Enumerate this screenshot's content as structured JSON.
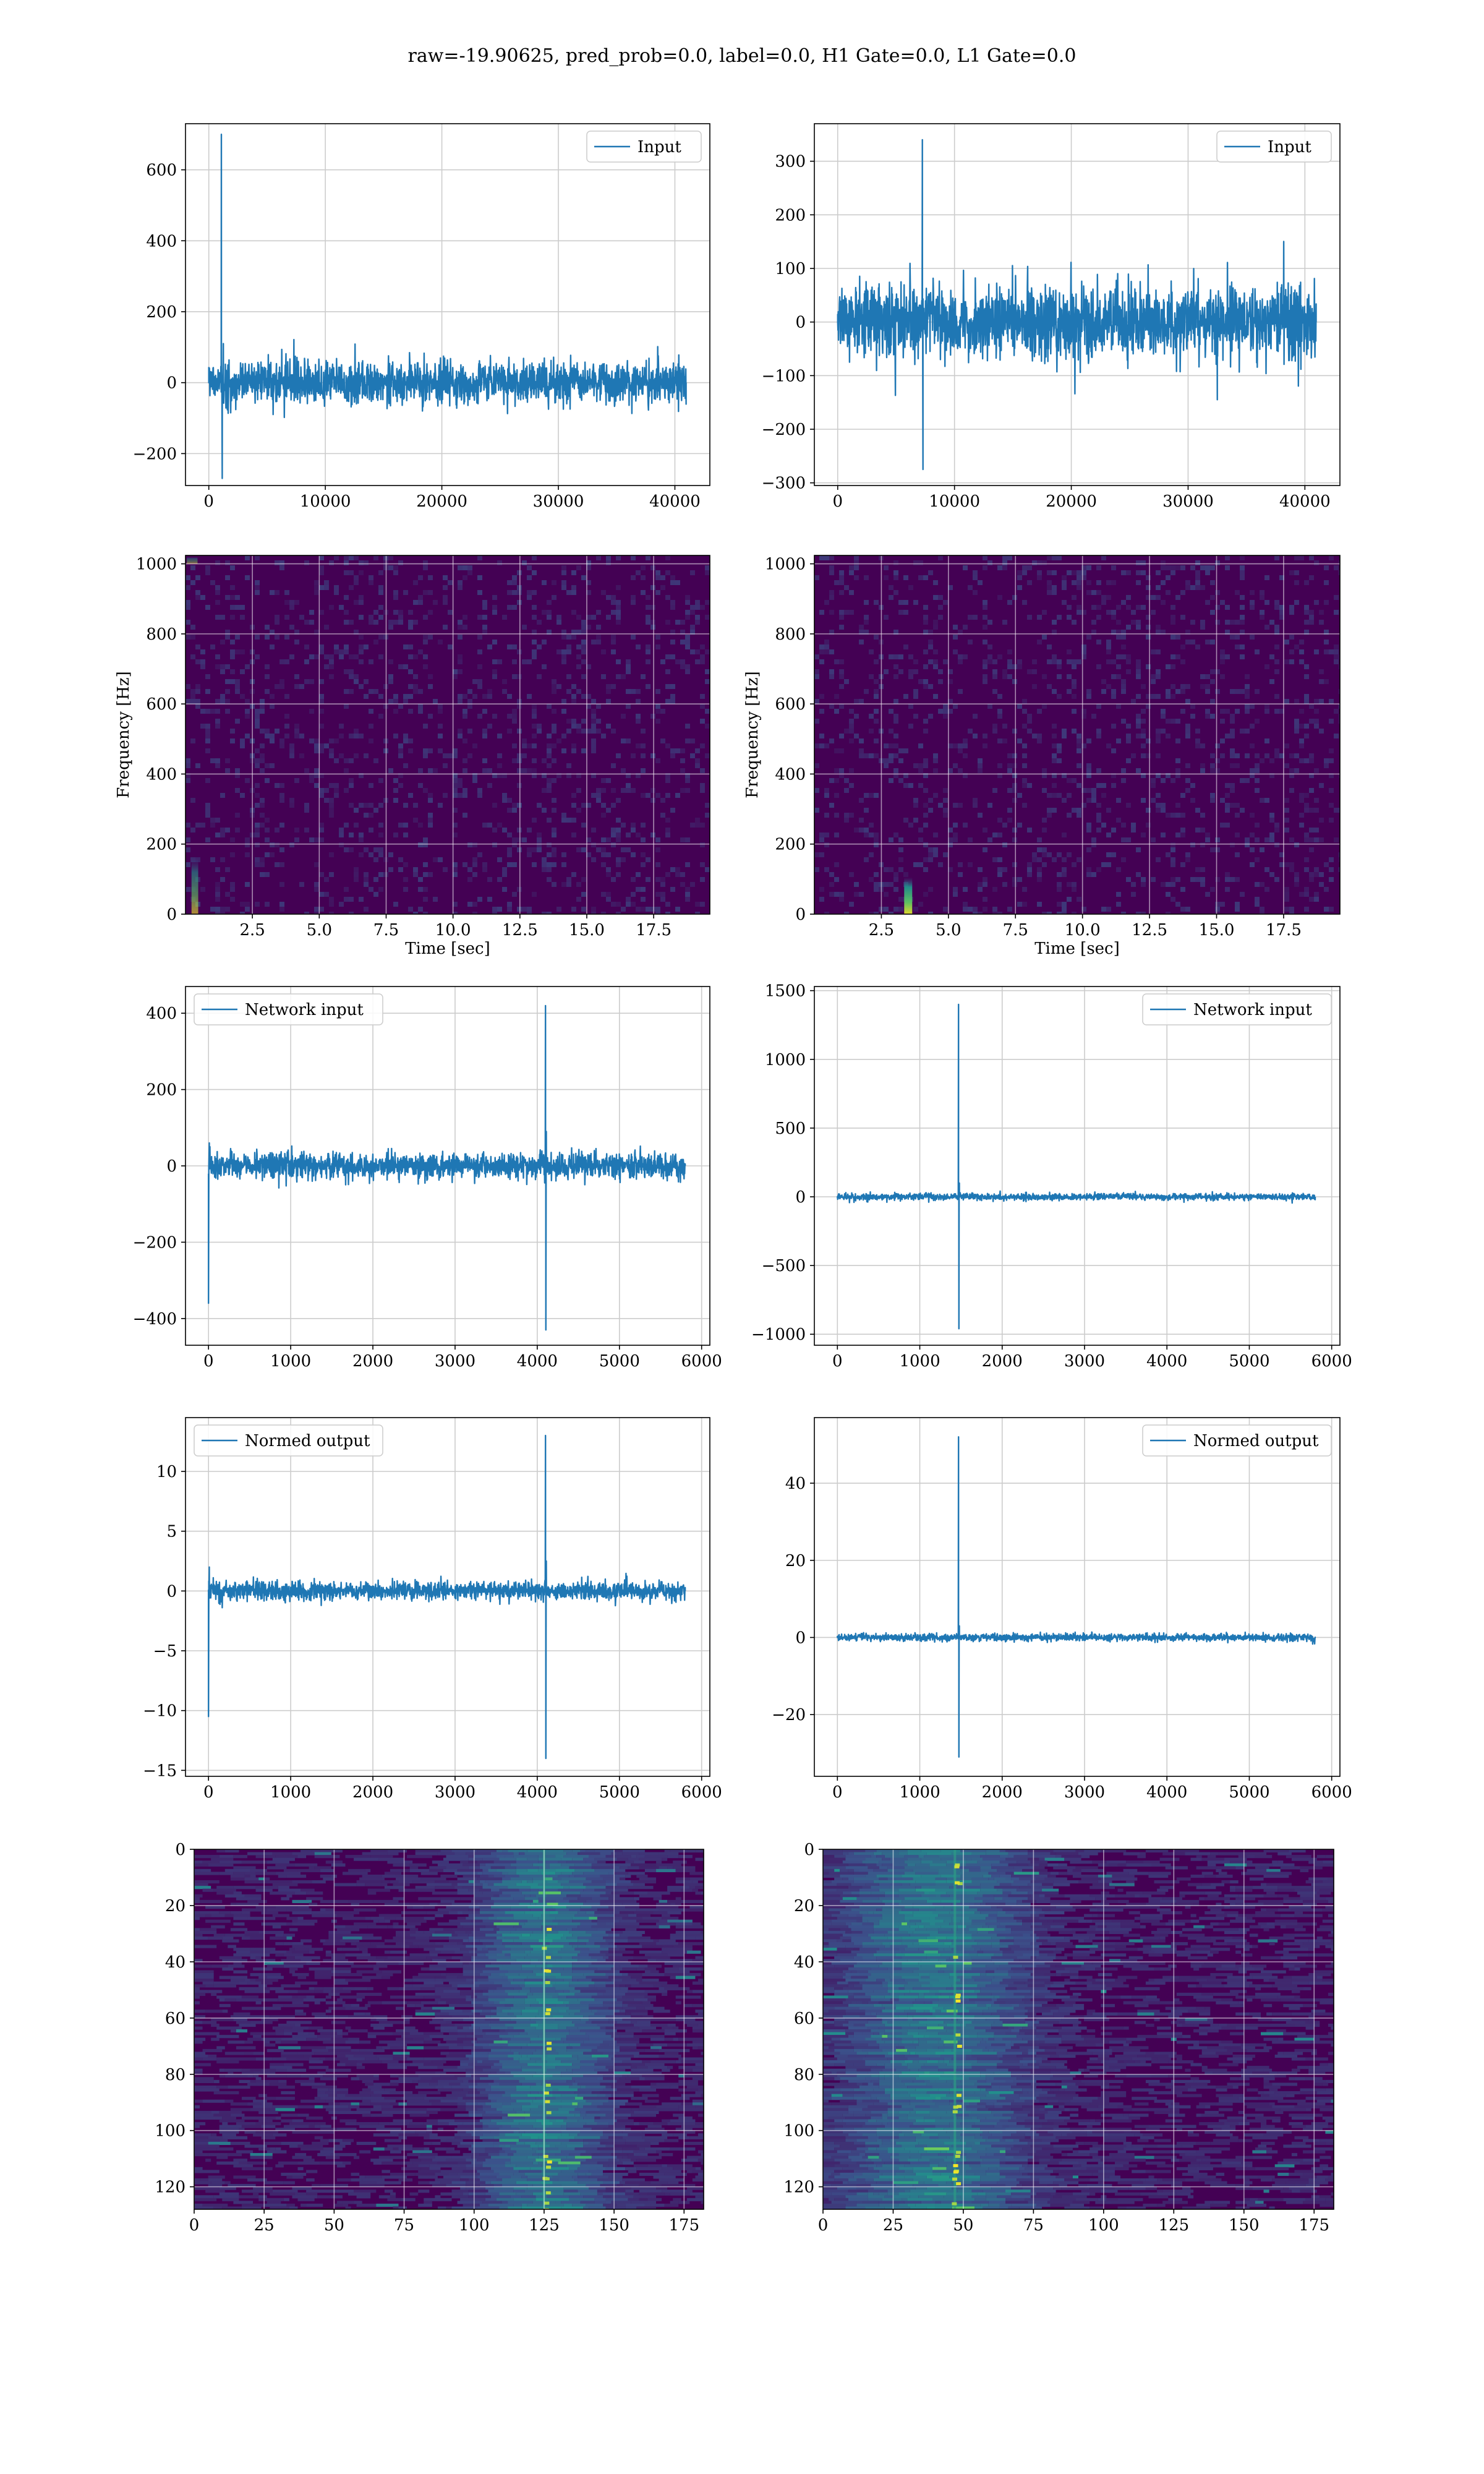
{
  "figure": {
    "title": "raw=-19.90625, pred_prob=0.0, label=0.0, H1 Gate=0.0, L1 Gate=0.0"
  },
  "colors": {
    "line": "#1f77b4",
    "grid": "#cccccc",
    "viridis_low": "#440154",
    "viridis_mid": "#21918c",
    "viridis_high": "#fde725"
  },
  "chart_data": [
    {
      "id": "input-left",
      "type": "line",
      "series": [
        {
          "name": "Input",
          "noise_amplitude": 80,
          "x": [
            0,
            1000,
            1080,
            1150,
            1250,
            10000,
            20000,
            30000,
            40960
          ],
          "y": [
            0,
            20,
            700,
            -270,
            110,
            25,
            0,
            10,
            0
          ]
        }
      ],
      "xlim": [
        -2000,
        43000
      ],
      "ylim": [
        -290,
        730
      ],
      "xticks": [
        0,
        10000,
        20000,
        30000,
        40000
      ],
      "xtick_labels": [
        "0",
        "10000",
        "20000",
        "30000",
        "40000"
      ],
      "yticks": [
        -200,
        0,
        200,
        400,
        600
      ],
      "ytick_labels": [
        "−200",
        "0",
        "200",
        "400",
        "600"
      ],
      "legend": "top-right",
      "grid": true
    },
    {
      "id": "input-right",
      "type": "line",
      "series": [
        {
          "name": "Input",
          "noise_amplitude": 90,
          "x": [
            0,
            7200,
            7250,
            7300,
            10000,
            20000,
            30000,
            32500,
            40960
          ],
          "y": [
            0,
            40,
            340,
            -275,
            30,
            0,
            10,
            -145,
            0
          ]
        }
      ],
      "xlim": [
        -2000,
        43000
      ],
      "ylim": [
        -305,
        370
      ],
      "xticks": [
        0,
        10000,
        20000,
        30000,
        40000
      ],
      "xtick_labels": [
        "0",
        "10000",
        "20000",
        "30000",
        "40000"
      ],
      "yticks": [
        -300,
        -200,
        -100,
        0,
        100,
        200,
        300
      ],
      "ytick_labels": [
        "−300",
        "−200",
        "−100",
        "0",
        "100",
        "200",
        "300"
      ],
      "legend": "top-right",
      "grid": true
    },
    {
      "id": "spectrogram-left",
      "type": "heatmap",
      "xlabel": "Time [sec]",
      "ylabel": "Frequency [Hz]",
      "xlim": [
        0,
        19.6
      ],
      "ylim": [
        0,
        1024
      ],
      "xticks": [
        2.5,
        5.0,
        7.5,
        10.0,
        12.5,
        15.0,
        17.5
      ],
      "xtick_labels": [
        "2.5",
        "5.0",
        "7.5",
        "10.0",
        "12.5",
        "15.0",
        "17.5"
      ],
      "yticks": [
        0,
        200,
        400,
        600,
        800,
        1000
      ],
      "ytick_labels": [
        "0",
        "200",
        "400",
        "600",
        "800",
        "1000"
      ],
      "hotspots": [
        {
          "t": 0.35,
          "f": 80,
          "dt": 0.25,
          "df": 160,
          "level": 0.6
        },
        {
          "t": 0.25,
          "f": 1010,
          "dt": 0.4,
          "df": 20,
          "level": 0.45
        }
      ],
      "grid": true
    },
    {
      "id": "spectrogram-right",
      "type": "heatmap",
      "xlabel": "Time [sec]",
      "ylabel": "Frequency [Hz]",
      "xlim": [
        0,
        19.6
      ],
      "ylim": [
        0,
        1024
      ],
      "xticks": [
        2.5,
        5.0,
        7.5,
        10.0,
        12.5,
        15.0,
        17.5
      ],
      "xtick_labels": [
        "2.5",
        "5.0",
        "7.5",
        "10.0",
        "12.5",
        "15.0",
        "17.5"
      ],
      "yticks": [
        0,
        200,
        400,
        600,
        800,
        1000
      ],
      "ytick_labels": [
        "0",
        "200",
        "400",
        "600",
        "800",
        "1000"
      ],
      "hotspots": [
        {
          "t": 3.5,
          "f": 50,
          "dt": 0.3,
          "df": 110,
          "level": 0.95
        }
      ],
      "grid": true
    },
    {
      "id": "network-input-left",
      "type": "line",
      "series": [
        {
          "name": "Network input",
          "noise_amplitude": 45,
          "x": [
            0,
            10,
            20,
            1000,
            4100,
            4105,
            4110,
            4115,
            5800
          ],
          "y": [
            -360,
            60,
            0,
            10,
            420,
            -430,
            90,
            0,
            0
          ]
        }
      ],
      "xlim": [
        -280,
        6100
      ],
      "ylim": [
        -470,
        470
      ],
      "xticks": [
        0,
        1000,
        2000,
        3000,
        4000,
        5000,
        6000
      ],
      "xtick_labels": [
        "0",
        "1000",
        "2000",
        "3000",
        "4000",
        "5000",
        "6000"
      ],
      "yticks": [
        -400,
        -200,
        0,
        200,
        400
      ],
      "ytick_labels": [
        "−400",
        "−200",
        "0",
        "200",
        "400"
      ],
      "legend": "top-left",
      "grid": true
    },
    {
      "id": "network-input-right",
      "type": "line",
      "series": [
        {
          "name": "Network input",
          "noise_amplitude": 30,
          "x": [
            0,
            1000,
            1470,
            1475,
            1480,
            1485,
            3000,
            5000,
            5800
          ],
          "y": [
            0,
            0,
            1400,
            -960,
            100,
            0,
            0,
            10,
            0
          ]
        }
      ],
      "xlim": [
        -280,
        6100
      ],
      "ylim": [
        -1080,
        1530
      ],
      "xticks": [
        0,
        1000,
        2000,
        3000,
        4000,
        5000,
        6000
      ],
      "xtick_labels": [
        "0",
        "1000",
        "2000",
        "3000",
        "4000",
        "5000",
        "6000"
      ],
      "yticks": [
        -1000,
        -500,
        0,
        500,
        1000,
        1500
      ],
      "ytick_labels": [
        "−1000",
        "−500",
        "0",
        "500",
        "1000",
        "1500"
      ],
      "legend": "top-right",
      "grid": true
    },
    {
      "id": "normed-output-left",
      "type": "line",
      "series": [
        {
          "name": "Normed output",
          "noise_amplitude": 1.0,
          "x": [
            0,
            10,
            20,
            1000,
            4100,
            4105,
            4110,
            4115,
            5800
          ],
          "y": [
            -10.5,
            2,
            0,
            0.3,
            13,
            -14,
            2.5,
            0,
            0
          ]
        }
      ],
      "xlim": [
        -280,
        6100
      ],
      "ylim": [
        -15.5,
        14.5
      ],
      "xticks": [
        0,
        1000,
        2000,
        3000,
        4000,
        5000,
        6000
      ],
      "xtick_labels": [
        "0",
        "1000",
        "2000",
        "3000",
        "4000",
        "5000",
        "6000"
      ],
      "yticks": [
        -15,
        -10,
        -5,
        0,
        5,
        10
      ],
      "ytick_labels": [
        "−15",
        "−10",
        "−5",
        "0",
        "5",
        "10"
      ],
      "legend": "top-left",
      "grid": true
    },
    {
      "id": "normed-output-right",
      "type": "line",
      "series": [
        {
          "name": "Normed output",
          "noise_amplitude": 1.2,
          "x": [
            0,
            1000,
            1470,
            1475,
            1480,
            1485,
            3000,
            5000,
            5800
          ],
          "y": [
            0,
            0,
            52,
            -31,
            3,
            0,
            0,
            0.5,
            0
          ]
        }
      ],
      "xlim": [
        -280,
        6100
      ],
      "ylim": [
        -36,
        57
      ],
      "xticks": [
        0,
        1000,
        2000,
        3000,
        4000,
        5000,
        6000
      ],
      "xtick_labels": [
        "0",
        "1000",
        "2000",
        "3000",
        "4000",
        "5000",
        "6000"
      ],
      "yticks": [
        -20,
        0,
        20,
        40
      ],
      "ytick_labels": [
        "−20",
        "0",
        "20",
        "40"
      ],
      "legend": "top-right",
      "grid": true
    },
    {
      "id": "feature-map-left",
      "type": "heatmap",
      "xlim": [
        0,
        182
      ],
      "ylim": [
        128,
        0
      ],
      "xticks": [
        0,
        25,
        50,
        75,
        100,
        125,
        150,
        175
      ],
      "xtick_labels": [
        "0",
        "25",
        "50",
        "75",
        "100",
        "125",
        "150",
        "175"
      ],
      "yticks": [
        0,
        20,
        40,
        60,
        80,
        100,
        120
      ],
      "ytick_labels": [
        "0",
        "20",
        "40",
        "60",
        "80",
        "100",
        "120"
      ],
      "band_center": 125,
      "band_width": 22,
      "bright_column": 125,
      "grid": true
    },
    {
      "id": "feature-map-right",
      "type": "heatmap",
      "xlim": [
        0,
        182
      ],
      "ylim": [
        128,
        0
      ],
      "xticks": [
        0,
        25,
        50,
        75,
        100,
        125,
        150,
        175
      ],
      "xtick_labels": [
        "0",
        "25",
        "50",
        "75",
        "100",
        "125",
        "150",
        "175"
      ],
      "yticks": [
        0,
        20,
        40,
        60,
        80,
        100,
        120
      ],
      "ytick_labels": [
        "0",
        "20",
        "40",
        "60",
        "80",
        "100",
        "120"
      ],
      "band_center": 40,
      "band_width": 30,
      "bright_column": 47,
      "grid": true
    }
  ]
}
